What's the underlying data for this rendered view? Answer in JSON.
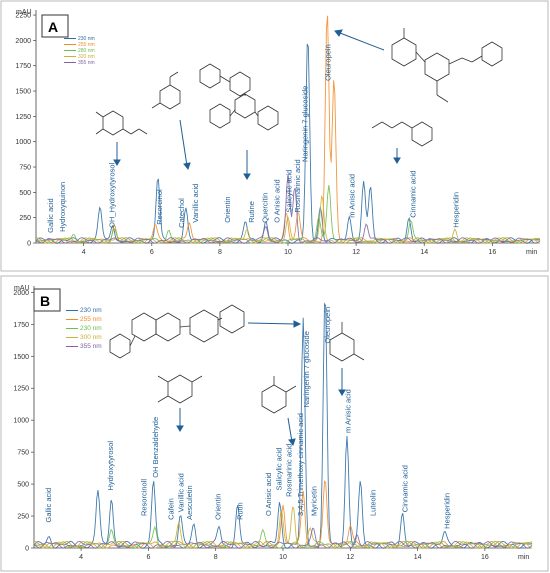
{
  "colors": {
    "nm230": "#2e6da4",
    "nm255": "#f28c28",
    "nm280": "#6cbf4a",
    "nm320": "#c9b037",
    "nm355": "#8064a2",
    "label": "#1f5f96"
  },
  "chart_data": [
    {
      "panel": "A",
      "type": "line",
      "ylabel": "mAU",
      "xlabel": "min",
      "xlim": [
        2.6,
        17.4
      ],
      "ylim": [
        0,
        2300
      ],
      "x_ticks": [
        4,
        6,
        8,
        10,
        12,
        14,
        16
      ],
      "y_ticks": [
        0,
        250,
        500,
        750,
        1000,
        1250,
        1500,
        1750,
        2000,
        2250
      ],
      "legend": [
        "230 nm",
        "255 nm",
        "280 nm",
        "320 nm",
        "355 nm"
      ],
      "series": [
        {
          "name": "230 nm",
          "peaks": [
            [
              4.48,
              320
            ],
            [
              4.85,
              170
            ],
            [
              6.18,
              620
            ],
            [
              7.0,
              300
            ],
            [
              8.75,
              180
            ],
            [
              9.35,
              200
            ],
            [
              10.58,
              2000
            ],
            [
              10.95,
              340
            ],
            [
              11.8,
              260
            ],
            [
              12.22,
              560
            ],
            [
              12.42,
              540
            ],
            [
              13.55,
              230
            ]
          ]
        },
        {
          "name": "255 nm",
          "peaks": [
            [
              11.15,
              2250
            ],
            [
              11.35,
              1600
            ],
            [
              10.3,
              280
            ],
            [
              9.95,
              300
            ],
            [
              7.1,
              170
            ],
            [
              6.1,
              150
            ],
            [
              4.9,
              160
            ]
          ]
        },
        {
          "name": "280 nm",
          "peaks": [
            [
              3.7,
              80
            ],
            [
              4.9,
              120
            ],
            [
              6.5,
              110
            ],
            [
              10.9,
              240
            ],
            [
              11.2,
              540
            ],
            [
              13.6,
              190
            ]
          ]
        },
        {
          "name": "320 nm",
          "peaks": [
            [
              8.8,
              140
            ],
            [
              10.0,
              210
            ],
            [
              11.0,
              420
            ],
            [
              14.9,
              120
            ]
          ]
        },
        {
          "name": "355 nm",
          "peaks": [
            [
              9.35,
              150
            ],
            [
              10.0,
              640
            ],
            [
              10.2,
              520
            ],
            [
              12.3,
              180
            ]
          ]
        }
      ],
      "labels": [
        {
          "text": "Gallic acid",
          "x": 3.1,
          "y": 100
        },
        {
          "text": "Hydroxyquinon",
          "x": 3.45,
          "y": 110
        },
        {
          "text": "OH_Hydroxytyrosol",
          "x": 4.9,
          "y": 150
        },
        {
          "text": "Resorcinol",
          "x": 6.3,
          "y": 180
        },
        {
          "text": "Catechol",
          "x": 6.95,
          "y": 150
        },
        {
          "text": "Vanillic acid",
          "x": 7.35,
          "y": 200
        },
        {
          "text": "Orientin",
          "x": 8.3,
          "y": 200
        },
        {
          "text": "Rutine",
          "x": 9.0,
          "y": 200
        },
        {
          "text": "Quercitin",
          "x": 9.4,
          "y": 200
        },
        {
          "text": "O Anisic acid",
          "x": 9.75,
          "y": 200
        },
        {
          "text": "Salicylic acid",
          "x": 10.1,
          "y": 300
        },
        {
          "text": "Rosmarinic acid",
          "x": 10.35,
          "y": 300
        },
        {
          "text": "Naringenin 7 glucoside",
          "x": 10.58,
          "y": 800
        },
        {
          "text": "Oleuropein",
          "x": 11.25,
          "y": 1600
        },
        {
          "text": "m Anisic acid",
          "x": 11.95,
          "y": 250
        },
        {
          "text": "Cinnamic acid",
          "x": 13.75,
          "y": 250
        },
        {
          "text": "Hesperidin",
          "x": 15.0,
          "y": 150
        }
      ]
    },
    {
      "panel": "B",
      "type": "line",
      "ylabel": "mAU",
      "xlabel": "min",
      "xlim": [
        2.6,
        17.4
      ],
      "ylim": [
        0,
        2050
      ],
      "x_ticks": [
        4,
        6,
        8,
        10,
        12,
        14,
        16
      ],
      "y_ticks": [
        0,
        250,
        500,
        750,
        1000,
        1250,
        1500,
        1750,
        2000
      ],
      "legend": [
        "230 nm",
        "255 nm",
        "230 nm",
        "300 nm",
        "355 nm"
      ],
      "series": [
        {
          "name": "230 nm",
          "peaks": [
            [
              3.05,
              60
            ],
            [
              4.5,
              420
            ],
            [
              4.9,
              380
            ],
            [
              6.15,
              500
            ],
            [
              6.95,
              220
            ],
            [
              7.35,
              160
            ],
            [
              8.1,
              140
            ],
            [
              8.65,
              300
            ],
            [
              9.9,
              330
            ],
            [
              10.6,
              1750
            ],
            [
              11.25,
              1960
            ],
            [
              11.9,
              860
            ],
            [
              12.3,
              480
            ],
            [
              13.55,
              260
            ],
            [
              14.8,
              90
            ]
          ]
        },
        {
          "name": "255 nm",
          "peaks": [
            [
              10.0,
              340
            ],
            [
              10.6,
              420
            ],
            [
              11.25,
              500
            ],
            [
              12.0,
              150
            ]
          ]
        },
        {
          "name": "230 nm",
          "peaks": [
            [
              4.9,
              120
            ],
            [
              6.2,
              140
            ],
            [
              9.4,
              90
            ]
          ]
        },
        {
          "name": "300 nm",
          "peaks": [
            [
              6.9,
              180
            ],
            [
              9.95,
              260
            ],
            [
              10.3,
              290
            ],
            [
              10.8,
              140
            ]
          ]
        },
        {
          "name": "355 nm",
          "peaks": [
            [
              10.9,
              110
            ],
            [
              12.2,
              90
            ]
          ]
        }
      ],
      "labels": [
        {
          "text": "Gallic acid",
          "x": 3.1,
          "y": 200
        },
        {
          "text": "Hydroxytyrosol",
          "x": 4.95,
          "y": 450
        },
        {
          "text": "Resorcinoll",
          "x": 5.95,
          "y": 250
        },
        {
          "text": "OH Benzaldehyde",
          "x": 6.28,
          "y": 550
        },
        {
          "text": "Cafein",
          "x": 6.75,
          "y": 220
        },
        {
          "text": "Vanillic acid",
          "x": 7.05,
          "y": 280
        },
        {
          "text": "Aesculetin",
          "x": 7.3,
          "y": 220
        },
        {
          "text": "Orientin",
          "x": 8.15,
          "y": 220
        },
        {
          "text": "Rutin",
          "x": 8.8,
          "y": 220
        },
        {
          "text": "O Anisic acid",
          "x": 9.65,
          "y": 250
        },
        {
          "text": "Salicylic acid",
          "x": 9.95,
          "y": 450
        },
        {
          "text": "Rosmarinic acid",
          "x": 10.25,
          "y": 400
        },
        {
          "text": "3,4,5 Trimethoxy cinnamic acid",
          "x": 10.6,
          "y": 250
        },
        {
          "text": "Myricetin",
          "x": 11.0,
          "y": 250
        },
        {
          "text": "Naringenin 7 glucoside",
          "x": 10.78,
          "y": 1100
        },
        {
          "text": "Oleuropein",
          "x": 11.4,
          "y": 1600
        },
        {
          "text": "m Anisic acid",
          "x": 12.0,
          "y": 900
        },
        {
          "text": "Luteolin",
          "x": 12.75,
          "y": 250
        },
        {
          "text": "Cinnamic acid",
          "x": 13.7,
          "y": 280
        },
        {
          "text": "Hesperidin",
          "x": 14.95,
          "y": 150
        }
      ]
    }
  ]
}
